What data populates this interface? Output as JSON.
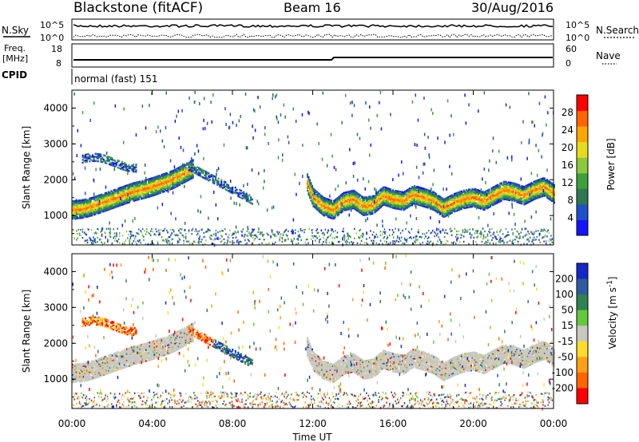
{
  "header": {
    "station": "Blackstone (fitACF)",
    "beam": "Beam 16",
    "date": "30/Aug/2016"
  },
  "top_panels": {
    "nsky_label": "N.Sky",
    "nsearch_label": "N.Search",
    "noise_tick_high": "10^5",
    "noise_tick_low": "10^0",
    "freq_label": "Freq.",
    "freq_unit": "[MHz]",
    "freq_ticks": [
      "18",
      "8"
    ],
    "nave_label": "Nave",
    "nave_ticks": [
      "60",
      "0"
    ],
    "cpid_label": "CPID",
    "cpid_value": "normal (fast) 151"
  },
  "chart_data": [
    {
      "type": "heatmap",
      "name": "power",
      "ylabel": "Slant Range [km]",
      "yticks": [
        1000,
        2000,
        3000,
        4000
      ],
      "ylim": [
        180,
        4500
      ],
      "xlim": [
        0,
        24
      ],
      "colorbar_label": "Power [dB]",
      "colorbar_ticks": [
        4,
        8,
        12,
        16,
        20,
        24,
        28
      ],
      "colorbar_range": [
        0,
        32
      ],
      "colors": [
        "#1414ff",
        "#1e50c8",
        "#2d7850",
        "#3ca03c",
        "#8cc83c",
        "#e6dc1e",
        "#ffa500",
        "#ff6400",
        "#ff0000"
      ],
      "echo_bands": [
        {
          "t": [
            0,
            0.5,
            1,
            1.5,
            2,
            2.5,
            3,
            3.5,
            4,
            4.5,
            5,
            5.5,
            6
          ],
          "range": [
            1150,
            1180,
            1250,
            1350,
            1450,
            1550,
            1650,
            1720,
            1800,
            1900,
            2000,
            2150,
            2300
          ]
        },
        {
          "t": [
            11.7,
            12,
            12.5,
            13,
            13.5,
            14,
            14.5,
            15,
            15.5,
            16,
            16.5,
            17,
            17.5,
            18,
            18.5,
            19,
            19.5,
            20,
            20.5,
            21,
            21.5,
            22,
            22.5,
            23,
            23.5,
            24
          ],
          "range": [
            1900,
            1500,
            1250,
            1150,
            1380,
            1450,
            1250,
            1300,
            1550,
            1450,
            1400,
            1580,
            1500,
            1400,
            1200,
            1350,
            1450,
            1500,
            1400,
            1550,
            1700,
            1650,
            1550,
            1700,
            1800,
            1600
          ]
        }
      ]
    },
    {
      "type": "heatmap",
      "name": "velocity",
      "ylabel": "Slant Range [km]",
      "yticks": [
        1000,
        2000,
        3000,
        4000
      ],
      "ylim": [
        180,
        4500
      ],
      "xlim": [
        0,
        24
      ],
      "xticks": [
        "00:00",
        "04:00",
        "08:00",
        "12:00",
        "16:00",
        "20:00",
        "00:00"
      ],
      "xlabel": "Time UT",
      "colorbar_label": "Velocity [m s^-1]",
      "colorbar_ticks": [
        200,
        100,
        50,
        15,
        -15,
        -50,
        -100,
        -200
      ],
      "colors": [
        "#1428c8",
        "#2d5aa0",
        "#2d8250",
        "#64c83c",
        "#c8c8c0",
        "#ffdc28",
        "#ffa014",
        "#ff6400",
        "#ff0000"
      ]
    }
  ]
}
